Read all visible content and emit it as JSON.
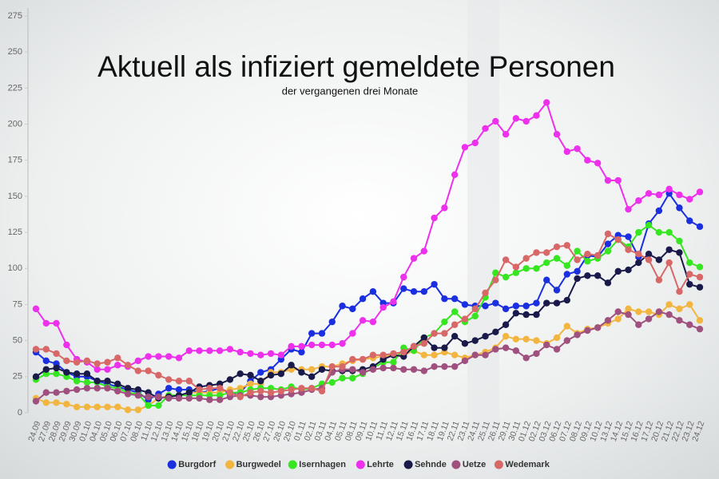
{
  "chart_data": {
    "type": "line",
    "title": "Aktuell als infiziert gemeldete Personen",
    "subtitle": "der vergangenen drei Monate",
    "categories": [
      "24.09",
      "27.09",
      "28.09",
      "29.09",
      "30.09",
      "01.10",
      "04.10",
      "05.10",
      "06.10",
      "07.10",
      "08.10",
      "11.10",
      "12.10",
      "13.10",
      "14.10",
      "15.10",
      "18.10",
      "19.10",
      "20.10",
      "21.10",
      "22.10",
      "25.10",
      "26.10",
      "27.10",
      "28.10",
      "29.10",
      "01.11",
      "02.11",
      "03.11",
      "04.11",
      "05.11",
      "08.11",
      "09.11",
      "10.11",
      "11.11",
      "12.11",
      "15.11",
      "16.11",
      "17.11",
      "18.11",
      "19.11",
      "22.11",
      "23.11",
      "24.11",
      "25.11",
      "26.11",
      "29.11",
      "30.11",
      "01.12",
      "02.12",
      "03.12",
      "06.12",
      "07.12",
      "08.12",
      "09.12",
      "10.12",
      "13.12",
      "14.12",
      "15.12",
      "16.12",
      "17.12",
      "20.12",
      "21.12",
      "22.12",
      "23.12",
      "24.12"
    ],
    "ylim": [
      0,
      275
    ],
    "yticks": [
      0,
      25,
      50,
      75,
      100,
      125,
      150,
      175,
      200,
      225,
      250,
      275
    ],
    "grid": false,
    "series": [
      {
        "name": "Burgdorf",
        "color": "#1a2fe0",
        "values": [
          42,
          36,
          34,
          28,
          25,
          25,
          22,
          20,
          18,
          16,
          14,
          9,
          13,
          17,
          16,
          16,
          14,
          15,
          17,
          13,
          14,
          22,
          28,
          30,
          37,
          44,
          42,
          55,
          55,
          63,
          74,
          72,
          79,
          84,
          76,
          76,
          86,
          84,
          84,
          89,
          79,
          79,
          75,
          74,
          74,
          76,
          72,
          74,
          74,
          76,
          92,
          85,
          96,
          98,
          109,
          108,
          117,
          123,
          122,
          108,
          131,
          140,
          152,
          142,
          133,
          129
        ]
      },
      {
        "name": "Burgwedel",
        "color": "#f2b640",
        "values": [
          10,
          7,
          7,
          6,
          4,
          4,
          4,
          4,
          4,
          2,
          2,
          5,
          10,
          12,
          12,
          14,
          14,
          14,
          14,
          16,
          17,
          20,
          20,
          28,
          28,
          30,
          30,
          30,
          32,
          32,
          34,
          36,
          37,
          38,
          39,
          40,
          40,
          43,
          40,
          40,
          42,
          40,
          38,
          40,
          42,
          45,
          53,
          51,
          51,
          50,
          48,
          52,
          60,
          55,
          58,
          59,
          62,
          65,
          72,
          70,
          70,
          68,
          75,
          72,
          75,
          64
        ]
      },
      {
        "name": "Isernhagen",
        "color": "#36e620",
        "values": [
          23,
          27,
          27,
          25,
          22,
          21,
          21,
          18,
          17,
          14,
          13,
          5,
          5,
          12,
          12,
          12,
          12,
          12,
          12,
          14,
          14,
          16,
          17,
          17,
          16,
          18,
          16,
          17,
          20,
          21,
          24,
          24,
          27,
          31,
          35,
          35,
          45,
          43,
          52,
          55,
          63,
          70,
          63,
          67,
          80,
          97,
          94,
          97,
          100,
          100,
          104,
          107,
          102,
          112,
          105,
          107,
          112,
          120,
          115,
          125,
          130,
          125,
          125,
          119,
          104,
          101
        ]
      },
      {
        "name": "Lehrte",
        "color": "#ec30ec",
        "values": [
          72,
          62,
          62,
          47,
          37,
          35,
          30,
          30,
          33,
          32,
          36,
          39,
          39,
          39,
          38,
          43,
          43,
          43,
          43,
          44,
          42,
          41,
          40,
          41,
          40,
          46,
          46,
          47,
          47,
          47,
          48,
          55,
          64,
          63,
          73,
          77,
          94,
          107,
          112,
          135,
          142,
          165,
          184,
          187,
          197,
          202,
          193,
          204,
          202,
          206,
          215,
          193,
          181,
          183,
          175,
          173,
          161,
          161,
          141,
          147,
          152,
          151,
          155,
          151,
          148,
          153
        ]
      },
      {
        "name": "Sehnde",
        "color": "#1a1a4a",
        "values": [
          25,
          30,
          31,
          28,
          27,
          27,
          22,
          22,
          20,
          17,
          16,
          14,
          10,
          11,
          12,
          14,
          18,
          19,
          20,
          23,
          27,
          26,
          22,
          26,
          27,
          33,
          28,
          25,
          30,
          29,
          29,
          29,
          30,
          32,
          37,
          40,
          39,
          46,
          52,
          45,
          45,
          53,
          48,
          50,
          53,
          56,
          61,
          69,
          68,
          68,
          76,
          76,
          78,
          93,
          95,
          95,
          90,
          98,
          99,
          104,
          110,
          106,
          113,
          111,
          89,
          87
        ]
      },
      {
        "name": "Uetze",
        "color": "#a0507e",
        "values": [
          8,
          14,
          14,
          15,
          16,
          17,
          17,
          17,
          15,
          13,
          12,
          11,
          11,
          10,
          10,
          10,
          10,
          9,
          9,
          11,
          12,
          12,
          11,
          11,
          12,
          13,
          14,
          16,
          17,
          28,
          30,
          30,
          28,
          30,
          31,
          31,
          30,
          30,
          29,
          32,
          32,
          32,
          36,
          40,
          40,
          44,
          45,
          43,
          38,
          41,
          47,
          44,
          50,
          54,
          57,
          59,
          64,
          70,
          68,
          61,
          65,
          70,
          68,
          64,
          61,
          58
        ]
      },
      {
        "name": "Wedemark",
        "color": "#d86868",
        "values": [
          44,
          44,
          41,
          36,
          35,
          36,
          34,
          35,
          38,
          33,
          29,
          29,
          26,
          23,
          22,
          22,
          16,
          17,
          17,
          14,
          11,
          14,
          15,
          14,
          15,
          16,
          17,
          17,
          15,
          32,
          32,
          37,
          37,
          40,
          40,
          41,
          42,
          46,
          48,
          55,
          55,
          61,
          65,
          72,
          83,
          92,
          106,
          101,
          107,
          111,
          111,
          115,
          116,
          106,
          110,
          109,
          124,
          120,
          113,
          110,
          106,
          92,
          104,
          84,
          96,
          94
        ]
      }
    ]
  }
}
